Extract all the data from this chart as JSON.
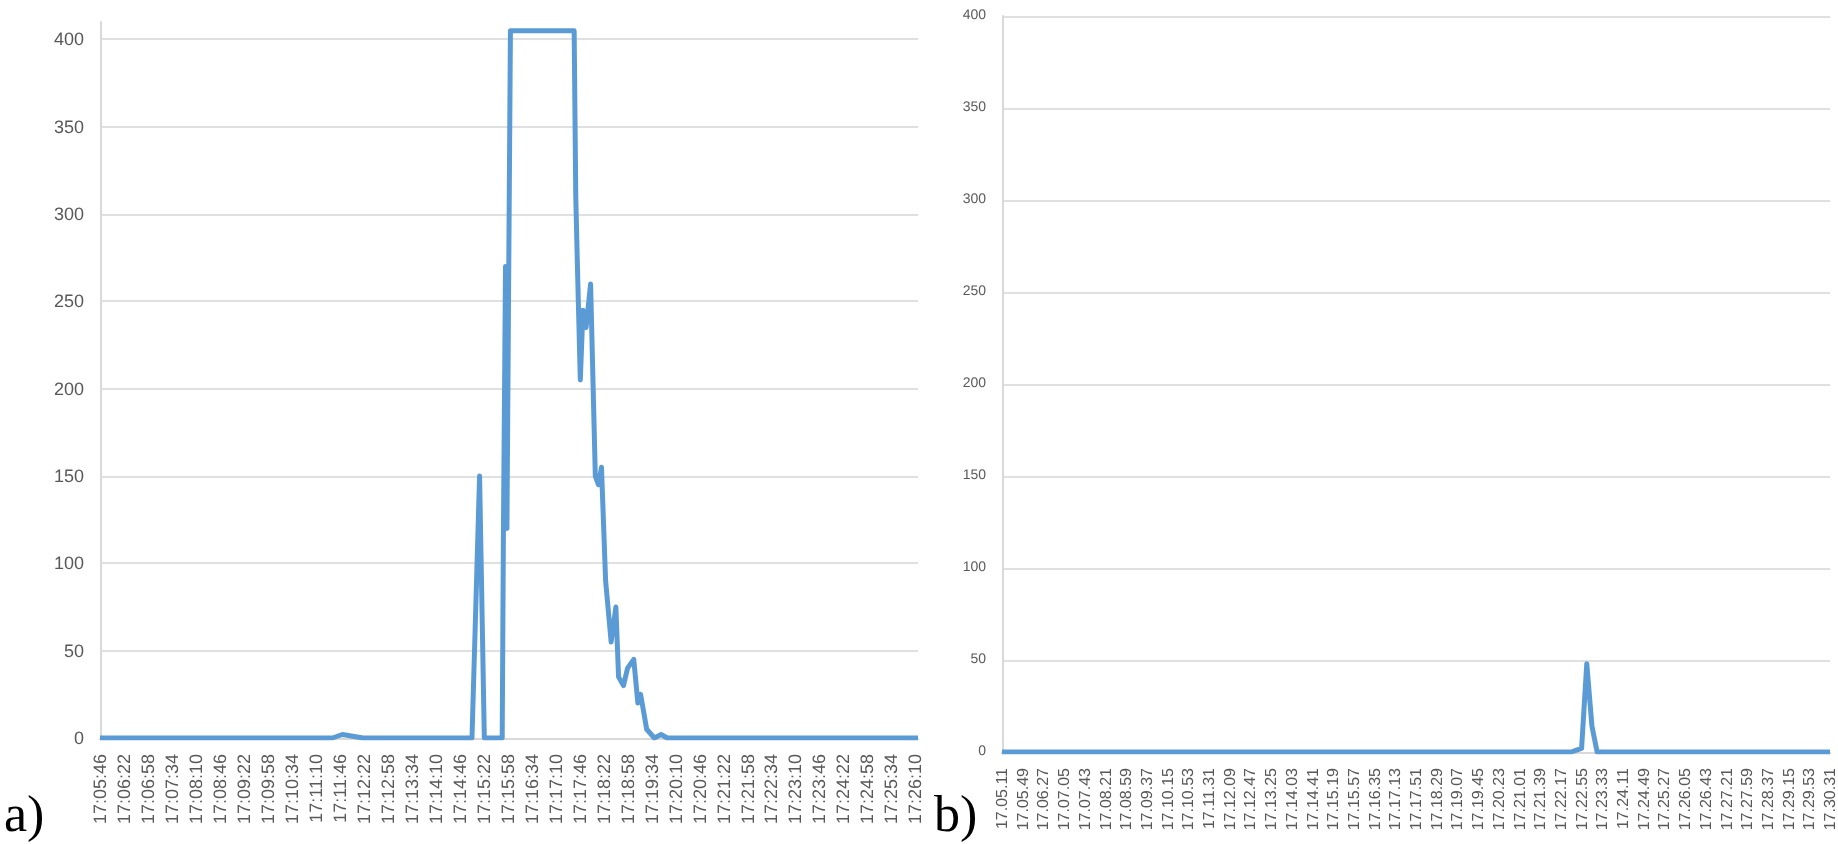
{
  "chart_data": [
    {
      "type": "line",
      "annotations": [
        "a)"
      ],
      "color": "#5b9bd5",
      "grid": "y",
      "marker": "none",
      "x": [
        17.09611,
        17.19295,
        17.19723,
        17.20152,
        17.2058,
        17.25122,
        17.25439,
        17.25637,
        17.26382,
        17.26434,
        17.2652,
        17.26579,
        17.26725,
        17.29382,
        17.2945,
        17.2951,
        17.29639,
        17.2975,
        17.29879,
        17.30068,
        17.30265,
        17.30394,
        17.30522,
        17.30694,
        17.30925,
        17.31122,
        17.31234,
        17.31439,
        17.3161,
        17.31868,
        17.32039,
        17.32153,
        17.32407,
        17.32725,
        17.33008,
        17.33264,
        17.4372
      ],
      "values": [
        0,
        0,
        2,
        1,
        0,
        0,
        150,
        0,
        0,
        120,
        270,
        120,
        405,
        405,
        310,
        275,
        205,
        245,
        235,
        260,
        150,
        145,
        155,
        90,
        55,
        75,
        35,
        30,
        40,
        45,
        20,
        25,
        5,
        0,
        2,
        0,
        0
      ],
      "xlim": [
        17.09611,
        17.4372
      ],
      "ylim": [
        0,
        410
      ],
      "yticks": [
        0,
        50,
        100,
        150,
        200,
        250,
        300,
        350,
        400
      ],
      "xticks": [
        {
          "value": 17.09611,
          "label": "17:05:46"
        },
        {
          "value": 17.10611,
          "label": "17:06:22"
        },
        {
          "value": 17.11611,
          "label": "17:06:58"
        },
        {
          "value": 17.12611,
          "label": "17:07:34"
        },
        {
          "value": 17.13611,
          "label": "17:08:10"
        },
        {
          "value": 17.14611,
          "label": "17:08:46"
        },
        {
          "value": 17.15611,
          "label": "17:09:22"
        },
        {
          "value": 17.16611,
          "label": "17:09:58"
        },
        {
          "value": 17.17611,
          "label": "17:10:34"
        },
        {
          "value": 17.18611,
          "label": "17:11:10"
        },
        {
          "value": 17.19611,
          "label": "17:11:46"
        },
        {
          "value": 17.20611,
          "label": "17:12:22"
        },
        {
          "value": 17.21611,
          "label": "17:12:58"
        },
        {
          "value": 17.22611,
          "label": "17:13:34"
        },
        {
          "value": 17.23611,
          "label": "17:14:10"
        },
        {
          "value": 17.24611,
          "label": "17:14:46"
        },
        {
          "value": 17.25611,
          "label": "17:15:22"
        },
        {
          "value": 17.26611,
          "label": "17:15:58"
        },
        {
          "value": 17.27611,
          "label": "17:16:34"
        },
        {
          "value": 17.28611,
          "label": "17:17:10"
        },
        {
          "value": 17.29611,
          "label": "17:17:46"
        },
        {
          "value": 17.30611,
          "label": "17:18:22"
        },
        {
          "value": 17.31611,
          "label": "17:18:58"
        },
        {
          "value": 17.32611,
          "label": "17:19:34"
        },
        {
          "value": 17.33611,
          "label": "17:20:10"
        },
        {
          "value": 17.34611,
          "label": "17:20:46"
        },
        {
          "value": 17.35611,
          "label": "17:21:22"
        },
        {
          "value": 17.36611,
          "label": "17:21:58"
        },
        {
          "value": 17.37611,
          "label": "17:22:34"
        },
        {
          "value": 17.38611,
          "label": "17:23:10"
        },
        {
          "value": 17.39611,
          "label": "17:23:46"
        },
        {
          "value": 17.40611,
          "label": "17:24:22"
        },
        {
          "value": 17.41611,
          "label": "17:24:58"
        },
        {
          "value": 17.42611,
          "label": "17:25:34"
        },
        {
          "value": 17.43611,
          "label": "17:26:10"
        }
      ]
    },
    {
      "type": "line",
      "annotations": [
        "b)"
      ],
      "color": "#5b9bd5",
      "grid": "y",
      "marker": "none",
      "categories": [
        "17.05.11",
        null,
        null,
        null,
        "17.05.49",
        null,
        null,
        null,
        "17.06.27",
        null,
        null,
        null,
        "17.07.05",
        null,
        null,
        null,
        "17.07.43",
        null,
        null,
        null,
        "17.08.21",
        null,
        null,
        null,
        "17.08.59",
        null,
        null,
        null,
        "17.09.37",
        null,
        null,
        null,
        "17.10.15",
        null,
        null,
        null,
        "17.10.53",
        null,
        null,
        null,
        "17.11.31",
        null,
        null,
        null,
        "17.12.09",
        null,
        null,
        null,
        "17.12.47",
        null,
        null,
        null,
        "17.13.25",
        null,
        null,
        null,
        "17.14.03",
        null,
        null,
        null,
        "17.14.41",
        null,
        null,
        null,
        "17.15.19",
        null,
        null,
        null,
        "17.15.57",
        null,
        null,
        null,
        "17.16.35",
        null,
        null,
        null,
        "17.17.13",
        null,
        null,
        null,
        "17.17.51",
        null,
        null,
        null,
        "17.18.29",
        null,
        null,
        null,
        "17.19.07",
        null,
        null,
        null,
        "17.19.45",
        null,
        null,
        null,
        "17.20.23",
        null,
        null,
        null,
        "17.21.01",
        null,
        null,
        null,
        "17.21.39",
        null,
        null,
        null,
        "17.22.17",
        null,
        null,
        null,
        "17.22.55",
        null,
        null,
        null,
        "17.23.33",
        null,
        null,
        null,
        "17.24.11",
        null,
        null,
        null,
        "17.24.49",
        null,
        null,
        null,
        "17.25.27",
        null,
        null,
        null,
        "17.26.05",
        null,
        null,
        null,
        "17.26.43",
        null,
        null,
        null,
        "17.27.21",
        null,
        null,
        null,
        "17.27.59",
        null,
        null,
        null,
        "17.28.37",
        null,
        null,
        null,
        "17.29.15",
        null,
        null,
        null,
        "17.29.53",
        null,
        null,
        null,
        "17.30.31"
      ],
      "values": [
        0,
        0,
        0,
        0,
        0,
        0,
        0,
        0,
        0,
        0,
        0,
        0,
        0,
        0,
        0,
        0,
        0,
        0,
        0,
        0,
        0,
        0,
        0,
        0,
        0,
        0,
        0,
        0,
        0,
        0,
        0,
        0,
        0,
        0,
        0,
        0,
        0,
        0,
        0,
        0,
        0,
        0,
        0,
        0,
        0,
        0,
        0,
        0,
        0,
        0,
        0,
        0,
        0,
        0,
        0,
        0,
        0,
        0,
        0,
        0,
        0,
        0,
        0,
        0,
        0,
        0,
        0,
        0,
        0,
        0,
        0,
        0,
        0,
        0,
        0,
        0,
        0,
        0,
        0,
        0,
        0,
        0,
        0,
        0,
        0,
        0,
        0,
        0,
        0,
        0,
        0,
        0,
        0,
        0,
        0,
        0,
        0,
        0,
        0,
        0,
        0,
        0,
        0,
        0,
        0,
        0,
        0,
        0,
        0,
        0,
        0,
        1,
        2,
        48,
        14,
        0,
        0,
        0,
        0,
        0,
        0,
        0,
        0,
        0,
        0,
        0,
        0,
        0,
        0,
        0,
        0,
        0,
        0,
        0,
        0,
        0,
        0,
        0,
        0,
        0,
        0,
        0,
        0,
        0,
        0,
        0,
        0,
        0,
        0,
        0,
        0,
        0,
        0,
        0,
        0,
        0,
        0,
        0,
        0,
        0,
        0
      ],
      "ylim": [
        0,
        400
      ],
      "yticks": [
        0,
        50,
        100,
        150,
        200,
        250,
        300,
        350,
        400
      ]
    }
  ]
}
